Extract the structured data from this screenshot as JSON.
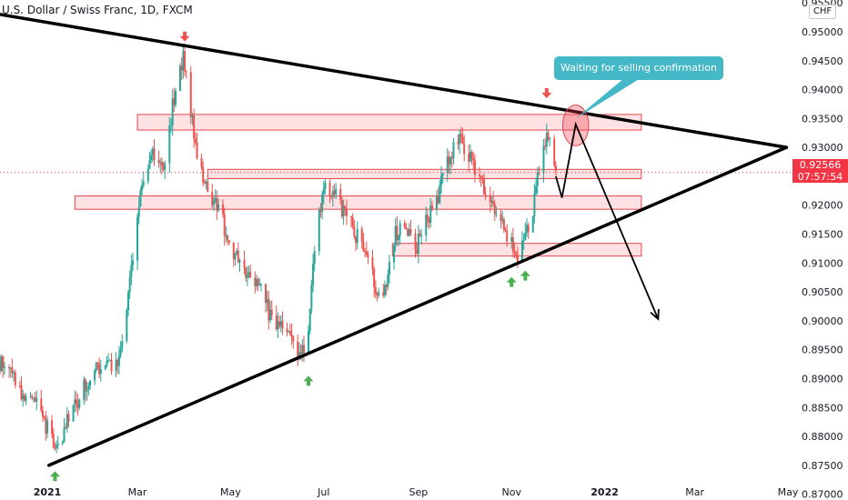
{
  "chart_data": {
    "type": "candlestick",
    "title": "U.S. Dollar / Swiss Franc, 1D, FXCM",
    "symbol": "USDCHF",
    "currency": "CHF",
    "timeframe": "1D",
    "source": "FXCM",
    "y_ticks": [
      "0.95500",
      "0.95000",
      "0.94500",
      "0.94000",
      "0.93500",
      "0.93000",
      "0.92500",
      "0.92000",
      "0.91500",
      "0.91000",
      "0.90500",
      "0.90000",
      "0.89500",
      "0.89000",
      "0.88500",
      "0.88000",
      "0.87500",
      "0.87000"
    ],
    "ylim": [
      0.869,
      0.9555
    ],
    "x_ticks": [
      {
        "label": "2021",
        "date": "2021-01-01",
        "bold": true
      },
      {
        "label": "Mar",
        "date": "2021-03-01",
        "bold": false
      },
      {
        "label": "May",
        "date": "2021-05-01",
        "bold": false
      },
      {
        "label": "Jul",
        "date": "2021-07-01",
        "bold": false
      },
      {
        "label": "Sep",
        "date": "2021-09-01",
        "bold": false
      },
      {
        "label": "Nov",
        "date": "2021-11-01",
        "bold": false
      },
      {
        "label": "2022",
        "date": "2022-01-01",
        "bold": true
      },
      {
        "label": "Mar",
        "date": "2022-03-01",
        "bold": false
      },
      {
        "label": "May",
        "date": "2022-05-01",
        "bold": false
      }
    ],
    "xlim": [
      "2020-12-01",
      "2022-05-01"
    ],
    "up_color": "#26a69a",
    "down_color": "#ef5350",
    "last_price": {
      "value": 0.92566,
      "label": "0.92566",
      "countdown": "07:57:54",
      "color": "#f23645"
    },
    "path_points": [
      [
        "2020-12-01",
        0.893
      ],
      [
        "2020-12-15",
        0.888
      ],
      [
        "2020-12-28",
        0.884
      ],
      [
        "2021-01-06",
        0.8775
      ],
      [
        "2021-01-20",
        0.886
      ],
      [
        "2021-02-03",
        0.892
      ],
      [
        "2021-02-17",
        0.893
      ],
      [
        "2021-02-24",
        0.906
      ],
      [
        "2021-03-04",
        0.925
      ],
      [
        "2021-03-11",
        0.929
      ],
      [
        "2021-03-18",
        0.926
      ],
      [
        "2021-03-25",
        0.939
      ],
      [
        "2021-03-31",
        0.946
      ],
      [
        "2021-04-08",
        0.93
      ],
      [
        "2021-04-15",
        0.923
      ],
      [
        "2021-04-22",
        0.92
      ],
      [
        "2021-05-01",
        0.913
      ],
      [
        "2021-05-10",
        0.908
      ],
      [
        "2021-05-20",
        0.906
      ],
      [
        "2021-05-27",
        0.901
      ],
      [
        "2021-06-04",
        0.899
      ],
      [
        "2021-06-10",
        0.896
      ],
      [
        "2021-06-16",
        0.894
      ],
      [
        "2021-06-21",
        0.899
      ],
      [
        "2021-06-25",
        0.912
      ],
      [
        "2021-07-01",
        0.923
      ],
      [
        "2021-07-08",
        0.922
      ],
      [
        "2021-07-15",
        0.918
      ],
      [
        "2021-07-22",
        0.915
      ],
      [
        "2021-07-29",
        0.911
      ],
      [
        "2021-08-05",
        0.905
      ],
      [
        "2021-08-10",
        0.906
      ],
      [
        "2021-08-17",
        0.915
      ],
      [
        "2021-08-24",
        0.916
      ],
      [
        "2021-08-31",
        0.913
      ],
      [
        "2021-09-07",
        0.918
      ],
      [
        "2021-09-14",
        0.922
      ],
      [
        "2021-09-21",
        0.928
      ],
      [
        "2021-09-28",
        0.932
      ],
      [
        "2021-10-05",
        0.928
      ],
      [
        "2021-10-12",
        0.924
      ],
      [
        "2021-10-19",
        0.92
      ],
      [
        "2021-10-26",
        0.916
      ],
      [
        "2021-11-01",
        0.913
      ],
      [
        "2021-11-05",
        0.911
      ],
      [
        "2021-11-10",
        0.914
      ],
      [
        "2021-11-15",
        0.919
      ],
      [
        "2021-11-19",
        0.927
      ],
      [
        "2021-11-24",
        0.932
      ],
      [
        "2021-11-29",
        0.927
      ],
      [
        "2021-11-30",
        0.9257
      ]
    ],
    "zones": [
      {
        "from": "2021-03-01",
        "to": "2022-01-25",
        "low": 0.933,
        "high": 0.9357
      },
      {
        "from": "2021-04-16",
        "to": "2022-01-25",
        "low": 0.9246,
        "high": 0.9262
      },
      {
        "from": "2021-01-19",
        "to": "2022-01-25",
        "low": 0.9193,
        "high": 0.9216
      },
      {
        "from": "2021-08-15",
        "to": "2022-01-25",
        "low": 0.9112,
        "high": 0.9134
      }
    ],
    "trendlines": [
      {
        "name": "upper",
        "points": [
          [
            "2020-12-01",
            0.953
          ],
          [
            "2022-04-30",
            0.93
          ]
        ]
      },
      {
        "name": "lower",
        "points": [
          [
            "2021-01-02",
            0.875
          ],
          [
            "2022-04-30",
            0.93
          ]
        ]
      }
    ],
    "projection": [
      [
        "2021-11-30",
        0.925
      ],
      [
        "2021-12-04",
        0.9213
      ],
      [
        "2021-12-13",
        0.934
      ],
      [
        "2022-02-05",
        0.9003
      ]
    ],
    "ellipse": {
      "center": [
        "2021-12-13",
        0.9338
      ],
      "width_days": 11,
      "height": 0.0058
    },
    "callout": {
      "text": "Waiting for selling confirmation",
      "anchor": [
        "2021-12-13",
        0.935
      ]
    },
    "markers": [
      {
        "date": "2021-04-01",
        "price": 0.9491,
        "direction": "down",
        "color": "#ef5350"
      },
      {
        "date": "2021-11-24",
        "price": 0.9393,
        "direction": "down",
        "color": "#ef5350"
      },
      {
        "date": "2021-01-06",
        "price": 0.8732,
        "direction": "up",
        "color": "#4caf50"
      },
      {
        "date": "2021-06-21",
        "price": 0.8897,
        "direction": "up",
        "color": "#4caf50"
      },
      {
        "date": "2021-11-01",
        "price": 0.9068,
        "direction": "up",
        "color": "#4caf50"
      },
      {
        "date": "2021-11-10",
        "price": 0.9079,
        "direction": "up",
        "color": "#4caf50"
      }
    ]
  }
}
